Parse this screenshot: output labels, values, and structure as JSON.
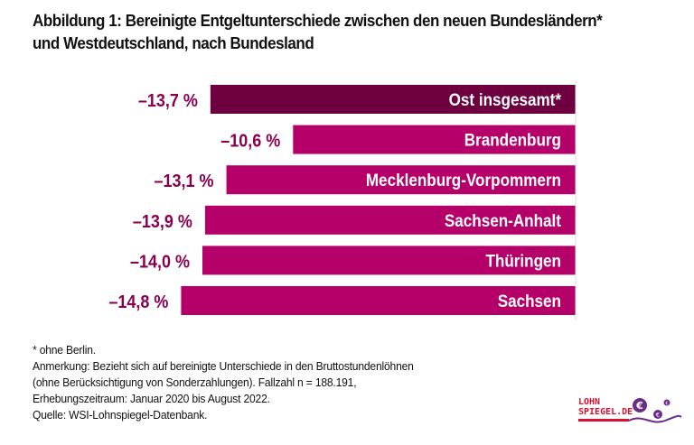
{
  "title": "Abbildung 1: Bereinigte Entgeltunterschiede zwischen den neuen Bundesländern* und Westdeutschland, nach Bundesland",
  "chart_data": {
    "type": "bar",
    "orientation": "horizontal",
    "categories": [
      "Ost insgesamt*",
      "Brandenburg",
      "Mecklenburg-Vorpommern",
      "Sachsen-Anhalt",
      "Thüringen",
      "Sachsen"
    ],
    "values": [
      -13.7,
      -10.6,
      -13.1,
      -13.9,
      -14.0,
      -14.8
    ],
    "value_labels": [
      "–13,7 %",
      "–10,6 %",
      "–13,1 %",
      "–13,9 %",
      "–14,0 %",
      "–14,8 %"
    ],
    "colors": [
      "#6e0040",
      "#b5006a",
      "#b5006a",
      "#b5006a",
      "#b5006a",
      "#b5006a"
    ],
    "label_color": "#8a0050",
    "grid": false
  },
  "notes": [
    "* ohne Berlin.",
    "Anmerkung: Bezieht sich auf bereinigte Unterschiede in den Bruttostundenlöhnen",
    "(ohne Berücksichtigung von Sonderzahlungen). Fallzahl n = 188.191,",
    "Erhebungszeitraum: Januar 2020 bis August 2022.",
    "Quelle: WSI-Lohnspiegel-Datenbank."
  ],
  "logo": {
    "line1": "LOHN",
    "line2": "SPIEGEL.DE",
    "color": "#d51030",
    "accent": "#6b2b8a"
  }
}
